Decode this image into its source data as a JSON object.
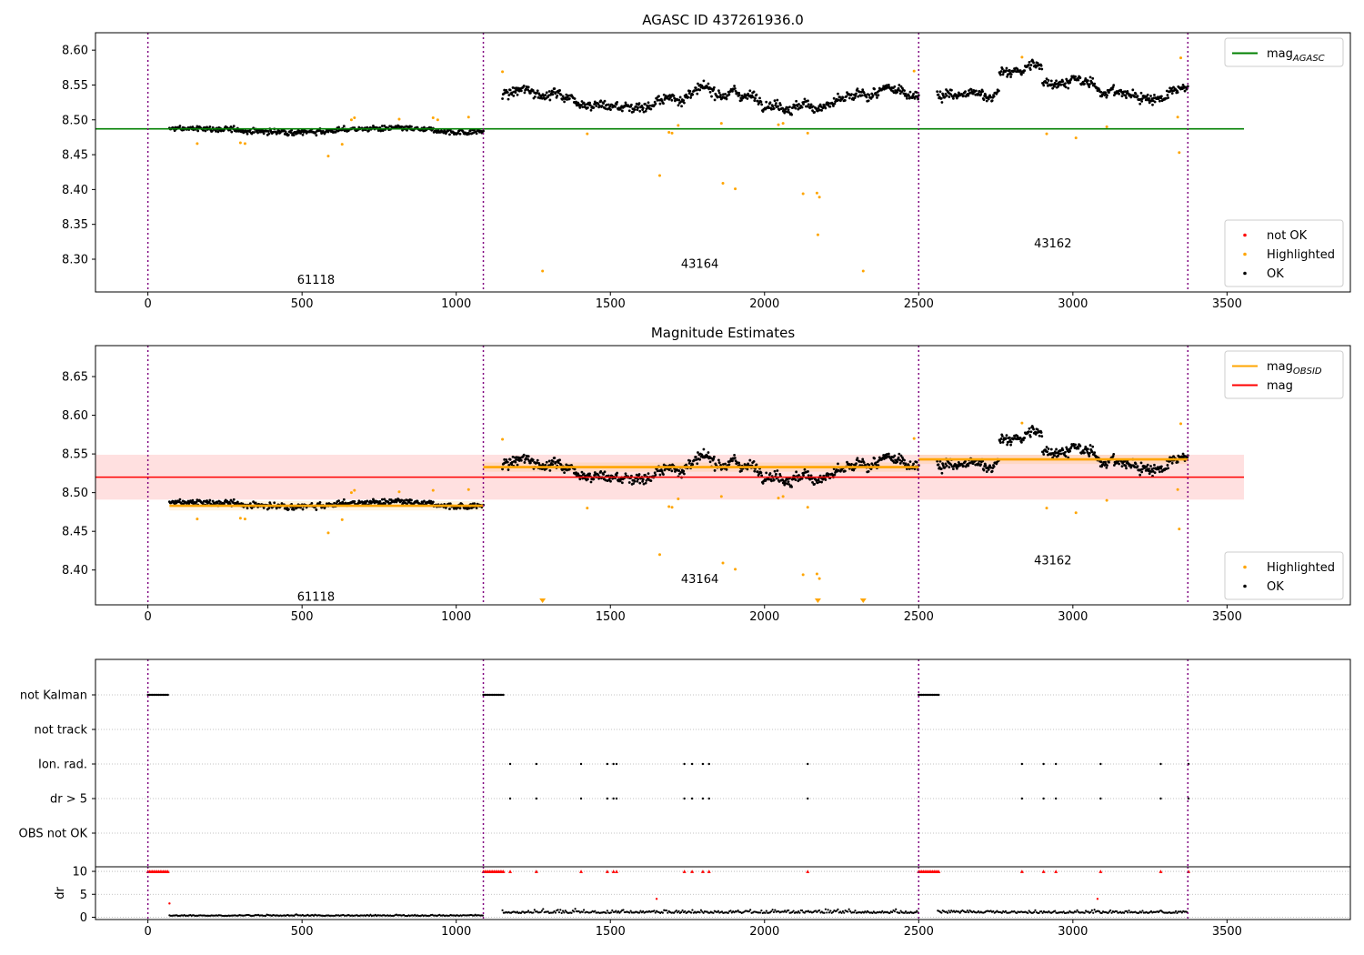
{
  "chart_data": [
    {
      "type": "scatter",
      "title": "AGASC ID 437261936.0",
      "xlim": [
        -170,
        3900
      ],
      "ylim": [
        8.253,
        8.625
      ],
      "xticks": [
        0,
        500,
        1000,
        1500,
        2000,
        2500,
        3000,
        3500
      ],
      "yticks": [
        8.3,
        8.35,
        8.4,
        8.45,
        8.5,
        8.55,
        8.6
      ],
      "vlines": [
        0,
        1088,
        2500,
        3373
      ],
      "hline": {
        "name": "mag_AGASC",
        "y": 8.487,
        "x": [
          -170,
          3555
        ],
        "color": "#008000"
      },
      "obsid_labels": [
        {
          "text": "61118",
          "x": 545,
          "y": 8.27
        },
        {
          "text": "43164",
          "x": 1790,
          "y": 8.293
        },
        {
          "text": "43162",
          "x": 2935,
          "y": 8.322
        }
      ],
      "segments": [
        {
          "x0": 70,
          "x1": 1088,
          "base": 8.485,
          "amp": 0.004,
          "noise": 0.006,
          "n": 420
        },
        {
          "x0": 1150,
          "x1": 2500,
          "base": 8.53,
          "amp": 0.018,
          "noise": 0.01,
          "n": 640
        },
        {
          "x0": 2560,
          "x1": 3373,
          "base": 8.545,
          "amp": 0.02,
          "noise": 0.009,
          "n": 420
        }
      ],
      "highlighted": [
        {
          "x": 1280,
          "y": 8.283
        },
        {
          "x": 1425,
          "y": 8.48
        },
        {
          "x": 1660,
          "y": 8.42
        },
        {
          "x": 1690,
          "y": 8.482
        },
        {
          "x": 1700,
          "y": 8.481
        },
        {
          "x": 1720,
          "y": 8.492
        },
        {
          "x": 1860,
          "y": 8.495
        },
        {
          "x": 1865,
          "y": 8.409
        },
        {
          "x": 1905,
          "y": 8.401
        },
        {
          "x": 2045,
          "y": 8.493
        },
        {
          "x": 2060,
          "y": 8.495
        },
        {
          "x": 2125,
          "y": 8.394
        },
        {
          "x": 2140,
          "y": 8.481
        },
        {
          "x": 2170,
          "y": 8.395
        },
        {
          "x": 2173,
          "y": 8.335
        },
        {
          "x": 2178,
          "y": 8.389
        },
        {
          "x": 2320,
          "y": 8.283
        },
        {
          "x": 2485,
          "y": 8.57
        },
        {
          "x": 1150,
          "y": 8.569
        },
        {
          "x": 2915,
          "y": 8.48
        },
        {
          "x": 3010,
          "y": 8.474
        },
        {
          "x": 3110,
          "y": 8.49
        },
        {
          "x": 3340,
          "y": 8.504
        },
        {
          "x": 3345,
          "y": 8.453
        },
        {
          "x": 3350,
          "y": 8.589
        },
        {
          "x": 2835,
          "y": 8.59
        },
        {
          "x": 160,
          "y": 8.466
        },
        {
          "x": 300,
          "y": 8.467
        },
        {
          "x": 315,
          "y": 8.466
        },
        {
          "x": 585,
          "y": 8.448
        },
        {
          "x": 630,
          "y": 8.465
        },
        {
          "x": 660,
          "y": 8.5
        },
        {
          "x": 670,
          "y": 8.503
        },
        {
          "x": 815,
          "y": 8.501
        },
        {
          "x": 925,
          "y": 8.503
        },
        {
          "x": 940,
          "y": 8.5
        },
        {
          "x": 1040,
          "y": 8.504
        }
      ],
      "legends": [
        {
          "position": "top-right",
          "entries": [
            {
              "label": "mag",
              "sub": "AGASC",
              "type": "line",
              "color": "#008000"
            }
          ]
        },
        {
          "position": "bottom-right",
          "entries": [
            {
              "label": "not OK",
              "type": "dot",
              "color": "#ff0000"
            },
            {
              "label": "Highlighted",
              "type": "dot",
              "color": "#ffa500"
            },
            {
              "label": "OK",
              "type": "dot",
              "color": "#000000"
            }
          ]
        }
      ]
    },
    {
      "type": "scatter",
      "title": "Magnitude Estimates",
      "xlim": [
        -170,
        3900
      ],
      "ylim": [
        8.355,
        8.69
      ],
      "xticks": [
        0,
        500,
        1000,
        1500,
        2000,
        2500,
        3000,
        3500
      ],
      "yticks": [
        8.4,
        8.45,
        8.5,
        8.55,
        8.6,
        8.65
      ],
      "vlines": [
        0,
        1088,
        2500,
        3373
      ],
      "mag_line": {
        "y": 8.52,
        "band": [
          8.491,
          8.549
        ],
        "x": [
          -170,
          3555
        ],
        "color": "#ff0000"
      },
      "obsid_mags": [
        {
          "x0": 70,
          "x1": 1088,
          "y": 8.483
        },
        {
          "x0": 1088,
          "x1": 2500,
          "y": 8.533
        },
        {
          "x0": 2500,
          "x1": 3373,
          "y": 8.543
        }
      ],
      "obsid_labels": [
        {
          "text": "61118",
          "x": 545,
          "y": 8.365
        },
        {
          "text": "43164",
          "x": 1790,
          "y": 8.388
        },
        {
          "text": "43162",
          "x": 2935,
          "y": 8.412
        }
      ],
      "highlighted": [
        {
          "x": 1425,
          "y": 8.48
        },
        {
          "x": 1660,
          "y": 8.42
        },
        {
          "x": 1690,
          "y": 8.482
        },
        {
          "x": 1700,
          "y": 8.481
        },
        {
          "x": 1720,
          "y": 8.492
        },
        {
          "x": 1860,
          "y": 8.495
        },
        {
          "x": 1865,
          "y": 8.409
        },
        {
          "x": 1905,
          "y": 8.401
        },
        {
          "x": 2045,
          "y": 8.493
        },
        {
          "x": 2060,
          "y": 8.495
        },
        {
          "x": 2125,
          "y": 8.394
        },
        {
          "x": 2140,
          "y": 8.481
        },
        {
          "x": 2170,
          "y": 8.395
        },
        {
          "x": 2178,
          "y": 8.389
        },
        {
          "x": 2485,
          "y": 8.57
        },
        {
          "x": 1150,
          "y": 8.569
        },
        {
          "x": 2915,
          "y": 8.48
        },
        {
          "x": 3010,
          "y": 8.474
        },
        {
          "x": 3110,
          "y": 8.49
        },
        {
          "x": 3340,
          "y": 8.504
        },
        {
          "x": 3345,
          "y": 8.453
        },
        {
          "x": 3350,
          "y": 8.589
        },
        {
          "x": 2835,
          "y": 8.59
        },
        {
          "x": 160,
          "y": 8.466
        },
        {
          "x": 300,
          "y": 8.467
        },
        {
          "x": 315,
          "y": 8.466
        },
        {
          "x": 585,
          "y": 8.448
        },
        {
          "x": 630,
          "y": 8.465
        },
        {
          "x": 660,
          "y": 8.5
        },
        {
          "x": 670,
          "y": 8.503
        },
        {
          "x": 815,
          "y": 8.501
        },
        {
          "x": 925,
          "y": 8.503
        },
        {
          "x": 1040,
          "y": 8.504
        }
      ],
      "offscale_markers": [
        1280,
        2173,
        2320
      ],
      "legends": [
        {
          "position": "top-right",
          "entries": [
            {
              "label": "mag",
              "sub": "OBSID",
              "type": "line",
              "color": "#ffa500"
            },
            {
              "label": "mag",
              "type": "line",
              "color": "#ff0000"
            }
          ]
        },
        {
          "position": "bottom-right",
          "entries": [
            {
              "label": "Highlighted",
              "type": "dot",
              "color": "#ffa500"
            },
            {
              "label": "OK",
              "type": "dot",
              "color": "#000000"
            }
          ]
        }
      ]
    },
    {
      "type": "scatter",
      "xlim": [
        -170,
        3900
      ],
      "xticks": [
        0,
        500,
        1000,
        1500,
        2000,
        2500,
        3000,
        3500
      ],
      "vlines": [
        0,
        1088,
        2500,
        3373
      ],
      "categories": [
        "not Kalman",
        "not track",
        "Ion. rad.",
        "dr > 5",
        "OBS not OK"
      ],
      "not_kalman_ranges": [
        [
          0,
          65
        ],
        [
          1088,
          1153
        ],
        [
          2500,
          2565
        ]
      ],
      "ion_rad_x": [
        1175,
        1260,
        1405,
        1490,
        1510,
        1520,
        1740,
        1765,
        1800,
        1820,
        2140,
        2835,
        2905,
        2945,
        3090,
        3285,
        3375
      ],
      "dr_ylim": [
        -0.5,
        11
      ],
      "dr_yticks": [
        0,
        5,
        10
      ],
      "dr_ylabel": "dr"
    }
  ]
}
